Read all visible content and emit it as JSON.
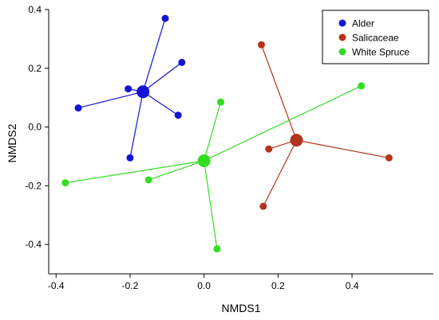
{
  "chart_data": {
    "type": "scatter",
    "xlabel": "NMDS1",
    "ylabel": "NMDS2",
    "xlim": [
      -0.42,
      0.62
    ],
    "ylim": [
      -0.5,
      0.4
    ],
    "xticks": [
      -0.4,
      -0.2,
      0.0,
      0.2,
      0.4
    ],
    "yticks": [
      -0.4,
      -0.2,
      0.0,
      0.2,
      0.4
    ],
    "xtick_labels": [
      "-0.4",
      "-0.2",
      "0.0",
      "0.2",
      "0.4"
    ],
    "ytick_labels": [
      "-0.4",
      "-0.2",
      "0.0",
      "0.2",
      "0.4"
    ],
    "grid": false,
    "legend_position": "top-right",
    "series": [
      {
        "name": "Alder",
        "color": "#1414d2",
        "centroid": [
          -0.165,
          0.12
        ],
        "points": [
          [
            -0.105,
            0.37
          ],
          [
            -0.06,
            0.22
          ],
          [
            -0.205,
            0.13
          ],
          [
            -0.34,
            0.065
          ],
          [
            -0.07,
            0.04
          ],
          [
            -0.2,
            -0.105
          ]
        ]
      },
      {
        "name": "Salicaceae",
        "color": "#b2341b",
        "centroid": [
          0.25,
          -0.045
        ],
        "points": [
          [
            0.155,
            0.28
          ],
          [
            0.175,
            -0.075
          ],
          [
            0.5,
            -0.105
          ],
          [
            0.16,
            -0.27
          ]
        ]
      },
      {
        "name": "White Spruce",
        "color": "#33dd22",
        "centroid": [
          0.0,
          -0.115
        ],
        "points": [
          [
            0.425,
            0.14
          ],
          [
            0.045,
            0.085
          ],
          [
            -0.375,
            -0.19
          ],
          [
            -0.15,
            -0.18
          ],
          [
            0.035,
            -0.415
          ]
        ]
      }
    ]
  }
}
